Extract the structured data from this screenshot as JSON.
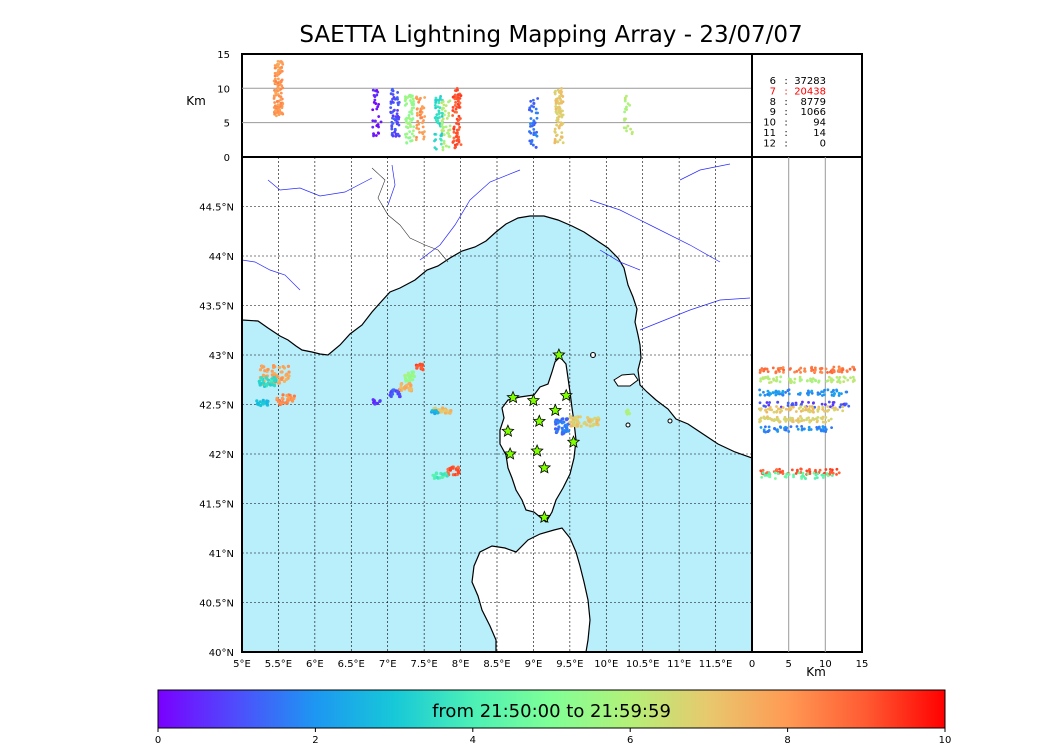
{
  "title": "SAETTA Lightning Mapping Array - 23/07/07",
  "colorbar": {
    "label": "from 21:50:00 to 21:59:59",
    "ticks": [
      "0",
      "2",
      "4",
      "6",
      "8",
      "10"
    ],
    "range": [
      0,
      10
    ],
    "colormap": [
      "#7a00ff",
      "#4e4dfc",
      "#1d97f2",
      "#17c8d8",
      "#4cf0b6",
      "#80ff96",
      "#b4f079",
      "#e8c86d",
      "#ff9a54",
      "#ff5a32",
      "#ff0000"
    ]
  },
  "colors": {
    "sea": "#b9eefb",
    "land": "#ffffff",
    "river": "#2a2aff",
    "coast": "#000000",
    "station": "#7fff00"
  },
  "chart_data": [
    {
      "type": "scatter",
      "panel": "map",
      "xticks": [
        "5°E",
        "5.5°E",
        "6°E",
        "6.5°E",
        "7°E",
        "7.5°E",
        "8°E",
        "8.5°E",
        "9°E",
        "9.5°E",
        "10°E",
        "10.5°E",
        "11°E",
        "11.5°E"
      ],
      "yticks": [
        "40°N",
        "40.5°N",
        "41°N",
        "41.5°N",
        "42°N",
        "42.5°N",
        "43°N",
        "43.5°N",
        "44°N",
        "44.5°N"
      ],
      "xlim": [
        5,
        12
      ],
      "ylim": [
        40,
        45
      ],
      "grid": true,
      "stations": [
        {
          "lon": 9.35,
          "lat": 43.0
        },
        {
          "lon": 8.72,
          "lat": 42.57
        },
        {
          "lon": 9.0,
          "lat": 42.54
        },
        {
          "lon": 9.45,
          "lat": 42.59
        },
        {
          "lon": 9.3,
          "lat": 42.44
        },
        {
          "lon": 9.08,
          "lat": 42.33
        },
        {
          "lon": 8.65,
          "lat": 42.23
        },
        {
          "lon": 9.55,
          "lat": 42.12
        },
        {
          "lon": 8.68,
          "lat": 42.0
        },
        {
          "lon": 9.05,
          "lat": 42.03
        },
        {
          "lon": 9.15,
          "lat": 41.86
        },
        {
          "lon": 9.15,
          "lat": 41.36
        }
      ],
      "clusters": [
        {
          "lon": 5.45,
          "lat": 42.8,
          "dlon": 0.2,
          "dlat": 0.1,
          "t": 7.8,
          "n": 60
        },
        {
          "lon": 5.35,
          "lat": 42.73,
          "dlon": 0.12,
          "dlat": 0.05,
          "t": 3.5,
          "n": 30
        },
        {
          "lon": 5.6,
          "lat": 42.55,
          "dlon": 0.12,
          "dlat": 0.05,
          "t": 8.3,
          "n": 30
        },
        {
          "lon": 5.3,
          "lat": 42.52,
          "dlon": 0.1,
          "dlat": 0.03,
          "t": 3.0,
          "n": 20
        },
        {
          "lon": 6.85,
          "lat": 42.52,
          "dlon": 0.05,
          "dlat": 0.03,
          "t": 0.5,
          "n": 10
        },
        {
          "lon": 7.1,
          "lat": 42.62,
          "dlon": 0.07,
          "dlat": 0.04,
          "t": 1.0,
          "n": 20
        },
        {
          "lon": 7.3,
          "lat": 42.78,
          "dlon": 0.08,
          "dlat": 0.05,
          "t": 5.5,
          "n": 25
        },
        {
          "lon": 7.25,
          "lat": 42.68,
          "dlon": 0.08,
          "dlat": 0.05,
          "t": 7.5,
          "n": 25
        },
        {
          "lon": 7.45,
          "lat": 42.88,
          "dlon": 0.07,
          "dlat": 0.03,
          "t": 9.0,
          "n": 15
        },
        {
          "lon": 7.75,
          "lat": 42.44,
          "dlon": 0.12,
          "dlat": 0.03,
          "t": 7.2,
          "n": 25
        },
        {
          "lon": 7.65,
          "lat": 42.42,
          "dlon": 0.05,
          "dlat": 0.02,
          "t": 2.5,
          "n": 10
        },
        {
          "lon": 7.9,
          "lat": 41.83,
          "dlon": 0.08,
          "dlat": 0.04,
          "t": 9.0,
          "n": 25
        },
        {
          "lon": 7.72,
          "lat": 41.78,
          "dlon": 0.1,
          "dlat": 0.03,
          "t": 4.0,
          "n": 20
        },
        {
          "lon": 9.4,
          "lat": 42.28,
          "dlon": 0.1,
          "dlat": 0.08,
          "t": 1.5,
          "n": 40
        },
        {
          "lon": 9.7,
          "lat": 42.33,
          "dlon": 0.2,
          "dlat": 0.05,
          "t": 7.0,
          "n": 50
        },
        {
          "lon": 10.3,
          "lat": 42.43,
          "dlon": 0.03,
          "dlat": 0.03,
          "t": 6.0,
          "n": 8
        }
      ]
    },
    {
      "type": "scatter",
      "panel": "altitude-vs-longitude",
      "ylabel": "Km",
      "yticks": [
        "0",
        "5",
        "10",
        "15"
      ],
      "ylim": [
        0,
        15
      ],
      "xlim": [
        5,
        12
      ],
      "columns": [
        {
          "lon": 5.5,
          "zmin": 6,
          "zmax": 14,
          "t": 8.0,
          "n": 120
        },
        {
          "lon": 6.85,
          "zmin": 3,
          "zmax": 10,
          "t": 0.3,
          "n": 30
        },
        {
          "lon": 7.1,
          "zmin": 3,
          "zmax": 10,
          "t": 1.0,
          "n": 60
        },
        {
          "lon": 7.3,
          "zmin": 2,
          "zmax": 9,
          "t": 5.5,
          "n": 60
        },
        {
          "lon": 7.45,
          "zmin": 2,
          "zmax": 9,
          "t": 8.0,
          "n": 40
        },
        {
          "lon": 7.7,
          "zmin": 1,
          "zmax": 9,
          "t": 3.5,
          "n": 50
        },
        {
          "lon": 7.8,
          "zmin": 1,
          "zmax": 9,
          "t": 6.0,
          "n": 40
        },
        {
          "lon": 7.95,
          "zmin": 1,
          "zmax": 10,
          "t": 9.0,
          "n": 70
        },
        {
          "lon": 9.0,
          "zmin": 1,
          "zmax": 9,
          "t": 1.5,
          "n": 40
        },
        {
          "lon": 9.35,
          "zmin": 2,
          "zmax": 10,
          "t": 7.0,
          "n": 80
        },
        {
          "lon": 10.3,
          "zmin": 3,
          "zmax": 9,
          "t": 6.0,
          "n": 20
        }
      ]
    },
    {
      "type": "scatter",
      "panel": "latitude-vs-altitude",
      "xlabel": "Km",
      "xticks": [
        "0",
        "5",
        "10",
        "15"
      ],
      "xlim": [
        0,
        15
      ],
      "ylim": [
        40,
        45
      ],
      "bands": [
        {
          "lat": 42.85,
          "zmin": 1,
          "zmax": 14,
          "t": 8.5,
          "n": 80
        },
        {
          "lat": 42.75,
          "zmin": 1,
          "zmax": 14,
          "t": 6.0,
          "n": 70
        },
        {
          "lat": 42.62,
          "zmin": 1,
          "zmax": 13,
          "t": 2.0,
          "n": 70
        },
        {
          "lat": 42.5,
          "zmin": 1,
          "zmax": 14,
          "t": 1.0,
          "n": 40
        },
        {
          "lat": 42.45,
          "zmin": 1,
          "zmax": 13,
          "t": 7.0,
          "n": 70
        },
        {
          "lat": 42.35,
          "zmin": 1,
          "zmax": 11,
          "t": 6.8,
          "n": 70
        },
        {
          "lat": 42.25,
          "zmin": 1,
          "zmax": 11,
          "t": 1.8,
          "n": 50
        },
        {
          "lat": 41.82,
          "zmin": 1,
          "zmax": 12,
          "t": 9.0,
          "n": 60
        },
        {
          "lat": 41.78,
          "zmin": 1,
          "zmax": 11,
          "t": 4.5,
          "n": 40
        }
      ]
    },
    {
      "type": "table",
      "panel": "stations-count",
      "rows": [
        {
          "stations": "6",
          "count": "37283",
          "highlight": false
        },
        {
          "stations": "7",
          "count": "20438",
          "highlight": true
        },
        {
          "stations": "8",
          "count": "8779",
          "highlight": false
        },
        {
          "stations": "9",
          "count": "1066",
          "highlight": false
        },
        {
          "stations": "10",
          "count": "94",
          "highlight": false
        },
        {
          "stations": "11",
          "count": "14",
          "highlight": false
        },
        {
          "stations": "12",
          "count": "0",
          "highlight": false
        }
      ]
    }
  ]
}
